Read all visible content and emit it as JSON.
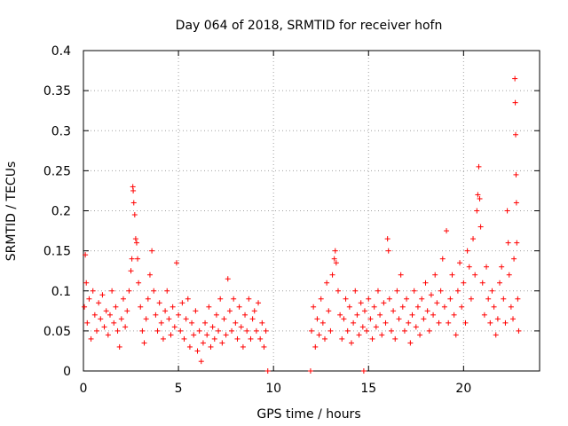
{
  "chart_data": {
    "type": "scatter",
    "title": "Day 064 of 2018, SRMTID for receiver hofn",
    "xlabel": "GPS time / hours",
    "ylabel": "SRMTID / TECUs",
    "xlim": [
      0,
      24
    ],
    "ylim": [
      0,
      0.4
    ],
    "x_ticks": [
      0,
      5,
      10,
      15,
      20
    ],
    "x_tick_labels": [
      "0",
      "5",
      "10",
      "15",
      "20"
    ],
    "y_ticks": [
      0,
      0.05,
      0.1,
      0.15,
      0.2,
      0.25,
      0.3,
      0.35,
      0.4
    ],
    "y_tick_labels": [
      "0",
      "0.05",
      "0.1",
      "0.15",
      "0.2",
      "0.25",
      "0.3",
      "0.35",
      "0.4"
    ],
    "grid": true,
    "marker": "+",
    "colors": {
      "series": "#ff0000",
      "axis": "#000000",
      "grid": "#a0a0a0"
    },
    "series": [
      {
        "name": "SRMTID",
        "points": [
          [
            0.05,
            0.08
          ],
          [
            0.1,
            0.145
          ],
          [
            0.15,
            0.11
          ],
          [
            0.2,
            0.06
          ],
          [
            0.3,
            0.09
          ],
          [
            0.4,
            0.04
          ],
          [
            0.5,
            0.1
          ],
          [
            0.6,
            0.07
          ],
          [
            0.7,
            0.05
          ],
          [
            0.8,
            0.085
          ],
          [
            0.9,
            0.065
          ],
          [
            1.0,
            0.095
          ],
          [
            1.1,
            0.055
          ],
          [
            1.2,
            0.075
          ],
          [
            1.3,
            0.045
          ],
          [
            1.4,
            0.07
          ],
          [
            1.5,
            0.1
          ],
          [
            1.6,
            0.06
          ],
          [
            1.7,
            0.08
          ],
          [
            1.8,
            0.05
          ],
          [
            1.9,
            0.03
          ],
          [
            2.0,
            0.065
          ],
          [
            2.1,
            0.09
          ],
          [
            2.2,
            0.055
          ],
          [
            2.3,
            0.075
          ],
          [
            2.4,
            0.1
          ],
          [
            2.5,
            0.125
          ],
          [
            2.55,
            0.14
          ],
          [
            2.6,
            0.23
          ],
          [
            2.62,
            0.225
          ],
          [
            2.65,
            0.21
          ],
          [
            2.7,
            0.195
          ],
          [
            2.75,
            0.165
          ],
          [
            2.8,
            0.16
          ],
          [
            2.85,
            0.14
          ],
          [
            2.9,
            0.11
          ],
          [
            3.0,
            0.08
          ],
          [
            3.1,
            0.05
          ],
          [
            3.2,
            0.035
          ],
          [
            3.3,
            0.065
          ],
          [
            3.4,
            0.09
          ],
          [
            3.5,
            0.12
          ],
          [
            3.6,
            0.15
          ],
          [
            3.7,
            0.1
          ],
          [
            3.8,
            0.07
          ],
          [
            3.9,
            0.05
          ],
          [
            4.0,
            0.085
          ],
          [
            4.1,
            0.06
          ],
          [
            4.2,
            0.04
          ],
          [
            4.3,
            0.075
          ],
          [
            4.4,
            0.1
          ],
          [
            4.5,
            0.065
          ],
          [
            4.6,
            0.045
          ],
          [
            4.7,
            0.08
          ],
          [
            4.8,
            0.055
          ],
          [
            4.9,
            0.135
          ],
          [
            5.0,
            0.07
          ],
          [
            5.1,
            0.05
          ],
          [
            5.2,
            0.085
          ],
          [
            5.3,
            0.04
          ],
          [
            5.4,
            0.065
          ],
          [
            5.5,
            0.09
          ],
          [
            5.6,
            0.03
          ],
          [
            5.7,
            0.06
          ],
          [
            5.8,
            0.045
          ],
          [
            5.9,
            0.075
          ],
          [
            6.0,
            0.025
          ],
          [
            6.1,
            0.05
          ],
          [
            6.2,
            0.012
          ],
          [
            6.3,
            0.035
          ],
          [
            6.4,
            0.06
          ],
          [
            6.5,
            0.045
          ],
          [
            6.6,
            0.08
          ],
          [
            6.7,
            0.03
          ],
          [
            6.8,
            0.055
          ],
          [
            6.9,
            0.04
          ],
          [
            7.0,
            0.07
          ],
          [
            7.1,
            0.05
          ],
          [
            7.2,
            0.09
          ],
          [
            7.3,
            0.035
          ],
          [
            7.4,
            0.065
          ],
          [
            7.5,
            0.045
          ],
          [
            7.6,
            0.115
          ],
          [
            7.7,
            0.075
          ],
          [
            7.8,
            0.05
          ],
          [
            7.9,
            0.09
          ],
          [
            8.0,
            0.06
          ],
          [
            8.1,
            0.04
          ],
          [
            8.2,
            0.08
          ],
          [
            8.3,
            0.055
          ],
          [
            8.4,
            0.03
          ],
          [
            8.5,
            0.07
          ],
          [
            8.6,
            0.05
          ],
          [
            8.7,
            0.09
          ],
          [
            8.8,
            0.04
          ],
          [
            8.9,
            0.065
          ],
          [
            9.0,
            0.075
          ],
          [
            9.1,
            0.05
          ],
          [
            9.2,
            0.085
          ],
          [
            9.3,
            0.04
          ],
          [
            9.4,
            0.06
          ],
          [
            9.5,
            0.03
          ],
          [
            9.6,
            0.05
          ],
          [
            9.7,
            0.0
          ],
          [
            11.95,
            0.0
          ],
          [
            12.0,
            0.05
          ],
          [
            12.1,
            0.08
          ],
          [
            12.2,
            0.03
          ],
          [
            12.3,
            0.065
          ],
          [
            12.4,
            0.045
          ],
          [
            12.5,
            0.09
          ],
          [
            12.6,
            0.06
          ],
          [
            12.7,
            0.04
          ],
          [
            12.8,
            0.11
          ],
          [
            12.9,
            0.075
          ],
          [
            13.0,
            0.05
          ],
          [
            13.1,
            0.12
          ],
          [
            13.2,
            0.14
          ],
          [
            13.25,
            0.15
          ],
          [
            13.3,
            0.135
          ],
          [
            13.4,
            0.1
          ],
          [
            13.5,
            0.07
          ],
          [
            13.6,
            0.04
          ],
          [
            13.7,
            0.065
          ],
          [
            13.8,
            0.09
          ],
          [
            13.9,
            0.05
          ],
          [
            14.0,
            0.08
          ],
          [
            14.1,
            0.035
          ],
          [
            14.2,
            0.06
          ],
          [
            14.3,
            0.1
          ],
          [
            14.4,
            0.07
          ],
          [
            14.5,
            0.045
          ],
          [
            14.6,
            0.085
          ],
          [
            14.7,
            0.055
          ],
          [
            14.75,
            0.0
          ],
          [
            14.8,
            0.075
          ],
          [
            14.9,
            0.05
          ],
          [
            15.0,
            0.09
          ],
          [
            15.1,
            0.065
          ],
          [
            15.2,
            0.04
          ],
          [
            15.3,
            0.08
          ],
          [
            15.4,
            0.055
          ],
          [
            15.5,
            0.1
          ],
          [
            15.6,
            0.07
          ],
          [
            15.7,
            0.045
          ],
          [
            15.8,
            0.085
          ],
          [
            15.9,
            0.06
          ],
          [
            16.0,
            0.165
          ],
          [
            16.05,
            0.15
          ],
          [
            16.1,
            0.09
          ],
          [
            16.2,
            0.05
          ],
          [
            16.3,
            0.075
          ],
          [
            16.4,
            0.04
          ],
          [
            16.5,
            0.1
          ],
          [
            16.6,
            0.065
          ],
          [
            16.7,
            0.12
          ],
          [
            16.8,
            0.08
          ],
          [
            16.9,
            0.05
          ],
          [
            17.0,
            0.09
          ],
          [
            17.1,
            0.06
          ],
          [
            17.2,
            0.035
          ],
          [
            17.3,
            0.07
          ],
          [
            17.4,
            0.1
          ],
          [
            17.5,
            0.055
          ],
          [
            17.6,
            0.08
          ],
          [
            17.7,
            0.045
          ],
          [
            17.8,
            0.09
          ],
          [
            17.9,
            0.065
          ],
          [
            18.0,
            0.11
          ],
          [
            18.1,
            0.075
          ],
          [
            18.2,
            0.05
          ],
          [
            18.3,
            0.095
          ],
          [
            18.4,
            0.07
          ],
          [
            18.5,
            0.12
          ],
          [
            18.6,
            0.085
          ],
          [
            18.7,
            0.06
          ],
          [
            18.8,
            0.1
          ],
          [
            18.9,
            0.14
          ],
          [
            19.0,
            0.08
          ],
          [
            19.1,
            0.175
          ],
          [
            19.2,
            0.06
          ],
          [
            19.3,
            0.09
          ],
          [
            19.4,
            0.12
          ],
          [
            19.5,
            0.07
          ],
          [
            19.6,
            0.045
          ],
          [
            19.7,
            0.1
          ],
          [
            19.8,
            0.135
          ],
          [
            19.9,
            0.08
          ],
          [
            20.0,
            0.11
          ],
          [
            20.1,
            0.06
          ],
          [
            20.2,
            0.15
          ],
          [
            20.3,
            0.13
          ],
          [
            20.4,
            0.09
          ],
          [
            20.5,
            0.165
          ],
          [
            20.6,
            0.12
          ],
          [
            20.7,
            0.2
          ],
          [
            20.75,
            0.22
          ],
          [
            20.8,
            0.255
          ],
          [
            20.85,
            0.215
          ],
          [
            20.9,
            0.18
          ],
          [
            21.0,
            0.11
          ],
          [
            21.1,
            0.07
          ],
          [
            21.2,
            0.13
          ],
          [
            21.3,
            0.09
          ],
          [
            21.4,
            0.06
          ],
          [
            21.5,
            0.1
          ],
          [
            21.6,
            0.08
          ],
          [
            21.7,
            0.045
          ],
          [
            21.8,
            0.065
          ],
          [
            21.9,
            0.11
          ],
          [
            22.0,
            0.13
          ],
          [
            22.1,
            0.09
          ],
          [
            22.2,
            0.06
          ],
          [
            22.3,
            0.2
          ],
          [
            22.35,
            0.16
          ],
          [
            22.4,
            0.12
          ],
          [
            22.5,
            0.08
          ],
          [
            22.6,
            0.065
          ],
          [
            22.65,
            0.14
          ],
          [
            22.7,
            0.365
          ],
          [
            22.72,
            0.335
          ],
          [
            22.74,
            0.295
          ],
          [
            22.76,
            0.245
          ],
          [
            22.78,
            0.21
          ],
          [
            22.8,
            0.16
          ],
          [
            22.85,
            0.09
          ],
          [
            22.9,
            0.05
          ]
        ]
      }
    ]
  }
}
